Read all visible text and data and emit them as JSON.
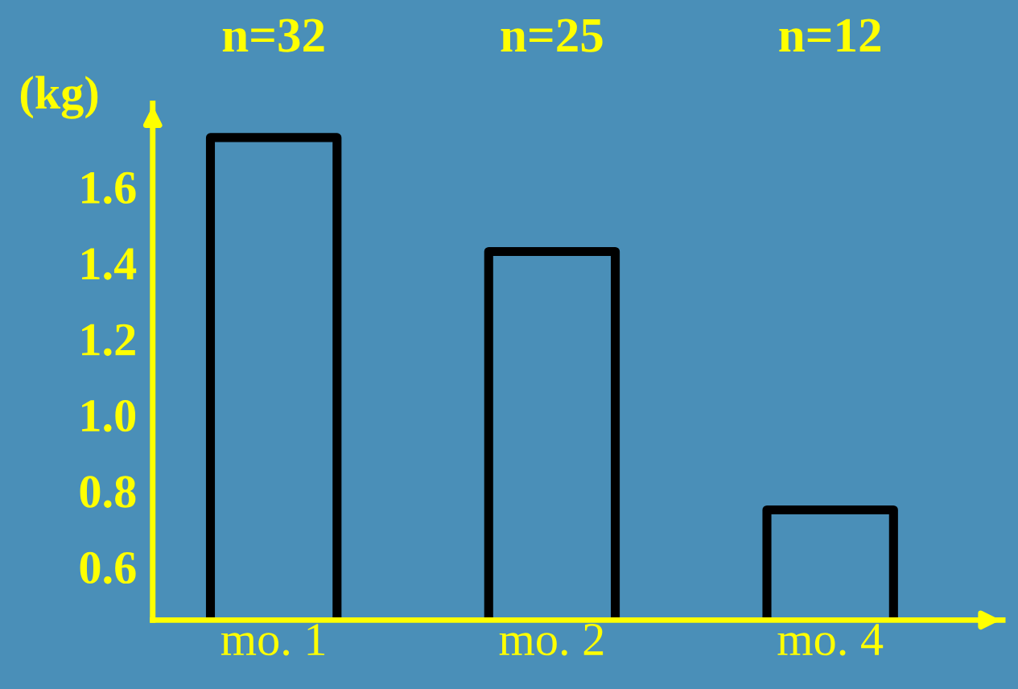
{
  "chart_data": {
    "type": "bar",
    "categories": [
      "mo. 1",
      "mo. 2",
      "mo. 4"
    ],
    "values": [
      1.73,
      1.43,
      0.75
    ],
    "color": "#000000",
    "ylabel": "(kg)",
    "ylim": [
      0.46,
      1.82
    ],
    "yticks": [
      {
        "value": 0.6,
        "label": "0.6"
      },
      {
        "value": 0.8,
        "label": "0.8"
      },
      {
        "value": 1.0,
        "label": "1.0"
      },
      {
        "value": 1.2,
        "label": "1.2"
      },
      {
        "value": 1.4,
        "label": "1.4"
      },
      {
        "value": 1.6,
        "label": "1.6"
      }
    ],
    "annotations": [
      "n=32",
      "n=25",
      "n=12"
    ],
    "grid": false,
    "legend": false
  }
}
